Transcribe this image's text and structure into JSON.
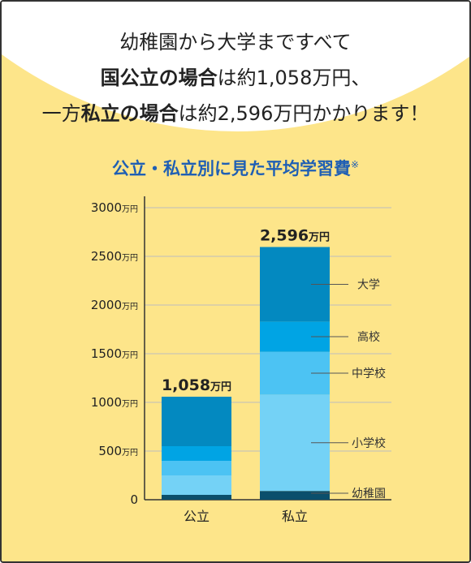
{
  "headline": {
    "line1": "幼稚園から大学まですべて",
    "line2_bold": "国公立の場合",
    "line2_rest": "は約1,058万円、",
    "line3_pre": "一方",
    "line3_bold": "私立の場合",
    "line3_rest": "は約2,596万円かかります！"
  },
  "subtitle": "公立・私立別に見た平均学習費",
  "subtitle_mark": "※",
  "colors": {
    "background": "#fde58a",
    "title_blue": "#1f5fb4",
    "segments": [
      "#0b4f6c",
      "#74d2f6",
      "#4cc3f3",
      "#00a4e4",
      "#0389c0"
    ]
  },
  "chart_data": {
    "type": "bar",
    "stacked": true,
    "categories": [
      "公立",
      "私立"
    ],
    "unit": "万円",
    "ylim": [
      0,
      3000
    ],
    "yticks": [
      {
        "value": 0,
        "label": "0",
        "unit": ""
      },
      {
        "value": 500,
        "label": "500",
        "unit": "万円"
      },
      {
        "value": 1000,
        "label": "1000",
        "unit": "万円"
      },
      {
        "value": 1500,
        "label": "1500",
        "unit": "万円"
      },
      {
        "value": 2000,
        "label": "2000",
        "unit": "万円"
      },
      {
        "value": 2500,
        "label": "2500",
        "unit": "万円"
      },
      {
        "value": 3000,
        "label": "3000",
        "unit": "万円"
      }
    ],
    "grid": true,
    "series": [
      {
        "name": "幼稚園",
        "values": [
          50,
          90
        ]
      },
      {
        "name": "小学校",
        "values": [
          200,
          990
        ]
      },
      {
        "name": "中学校",
        "values": [
          150,
          440
        ]
      },
      {
        "name": "高校",
        "values": [
          150,
          310
        ]
      },
      {
        "name": "大学",
        "values": [
          508,
          766
        ]
      }
    ],
    "totals": [
      {
        "value": 1058,
        "label": "1,058",
        "unit": "万円"
      },
      {
        "value": 2596,
        "label": "2,596",
        "unit": "万円"
      }
    ]
  }
}
